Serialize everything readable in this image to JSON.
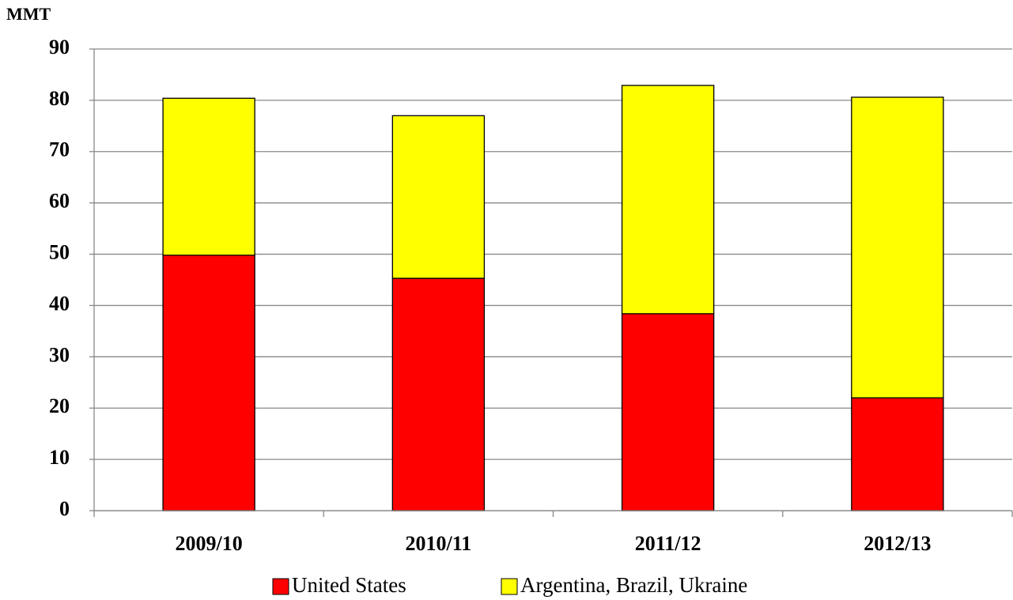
{
  "chart_data": {
    "type": "stacked_bar",
    "y_label": "MMT",
    "categories": [
      "2009/10",
      "2010/11",
      "2011/12",
      "2012/13"
    ],
    "series": [
      {
        "name": "United States",
        "color": "#ff0000",
        "values": [
          49.8,
          45.3,
          38.4,
          22.0
        ]
      },
      {
        "name": "Argentina, Brazil, Ukraine",
        "color": "#ffff00",
        "values": [
          30.6,
          31.7,
          44.5,
          58.6
        ]
      }
    ],
    "ylim": [
      0,
      90
    ],
    "yticks": [
      0,
      10,
      20,
      30,
      40,
      50,
      60,
      70,
      80,
      90
    ],
    "grid": true
  }
}
